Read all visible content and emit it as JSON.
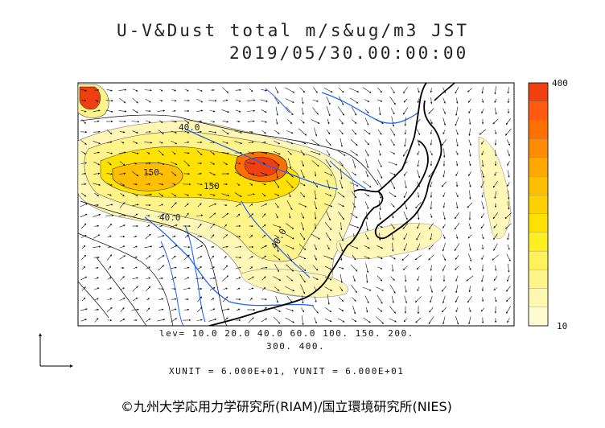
{
  "title": {
    "line1": "U-V&Dust total m/s&ug/m3 JST",
    "line2": "2019/05/30.00:00:00"
  },
  "legend": {
    "levels_line1": "lev= 10.0 20.0 40.0 60.0 100. 150. 200.",
    "levels_line2": "300. 400.",
    "levels": [
      10,
      20,
      40,
      60,
      100,
      150,
      200,
      300,
      400
    ],
    "scale_max": "400",
    "scale_min": "10",
    "colors": [
      "#fffbd0",
      "#fff7b0",
      "#fff48a",
      "#fff25a",
      "#ffee20",
      "#ffe100",
      "#ffd000",
      "#ffbf00",
      "#ffa800",
      "#ff8c00",
      "#ff7000",
      "#ff5a10",
      "#f04010"
    ]
  },
  "units": "XUNIT = 6.000E+01, YUNIT = 6.000E+01",
  "contour_labels": [
    "40.0",
    "150",
    "150",
    "40.0",
    "40.0"
  ],
  "credit": "©九州大学応用力学研究所(RIAM)/国立環境研究所(NIES)",
  "colors": {
    "coast": "#000000",
    "rivers": "#1e64ff",
    "dust_low": "#fff7b8",
    "dust_high": "#ff5a10"
  }
}
